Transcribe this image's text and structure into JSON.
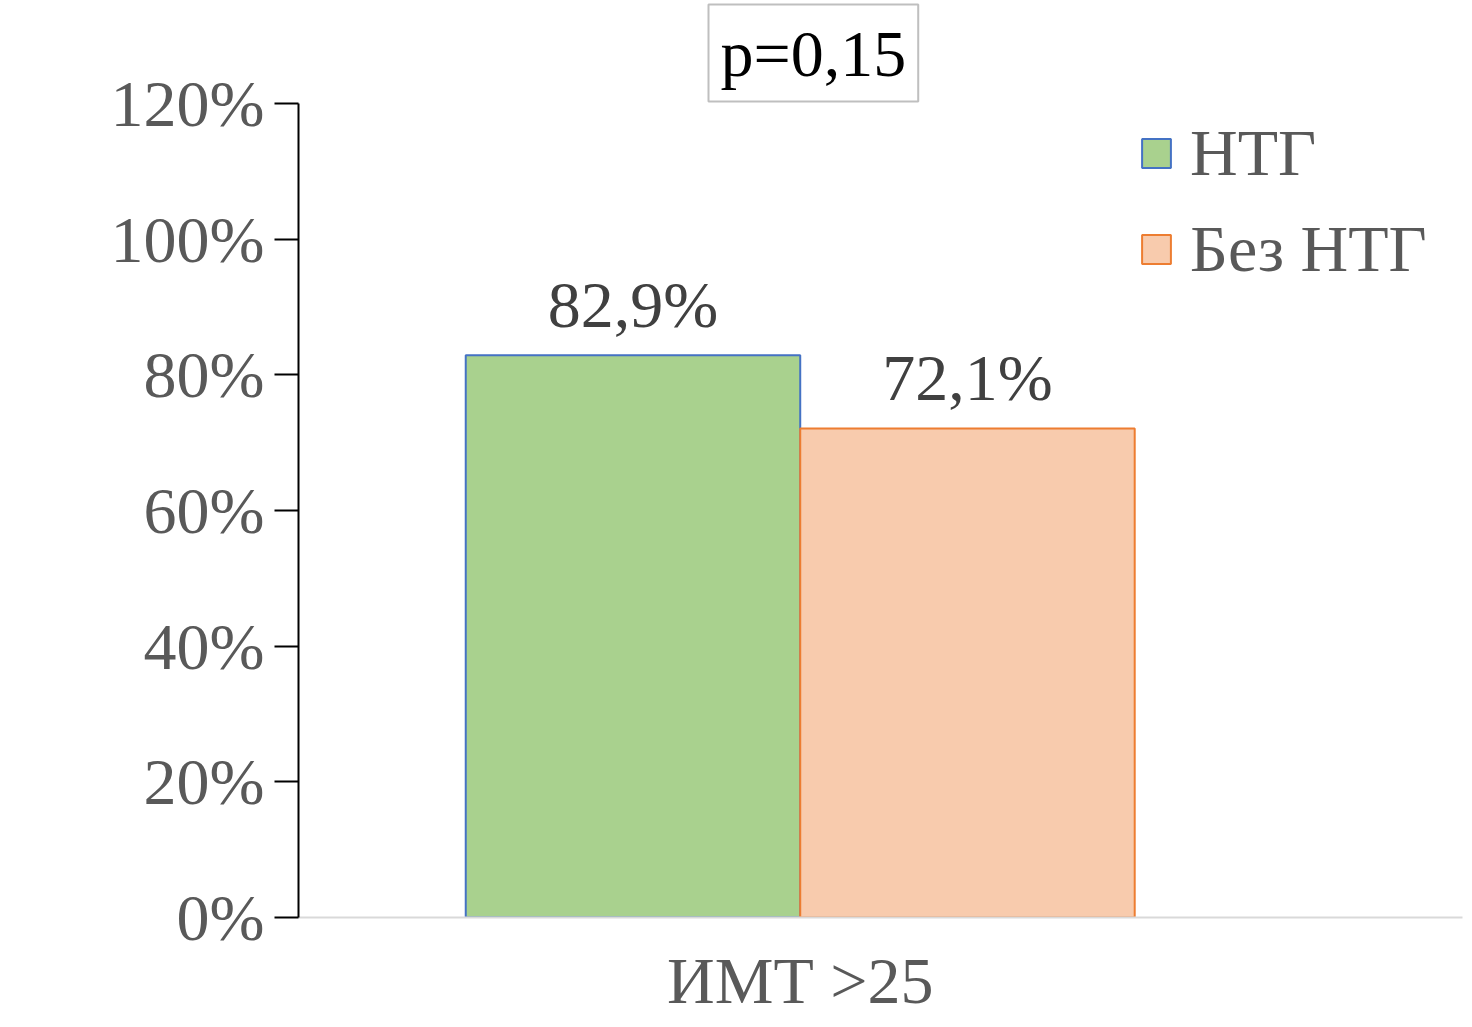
{
  "chart_data": {
    "type": "bar",
    "categories": [
      "ИМТ >25"
    ],
    "series": [
      {
        "name": "НТГ",
        "color": "#a9d18e",
        "values": [
          82.9
        ],
        "value_labels": [
          "82,9%"
        ]
      },
      {
        "name": "Без НТГ",
        "color": "#f8cbad",
        "values": [
          72.1
        ],
        "value_labels": [
          "72,1%"
        ]
      }
    ],
    "ylim": [
      0,
      120
    ],
    "yticks": [
      {
        "value": 0,
        "label": "0%"
      },
      {
        "value": 20,
        "label": "20%"
      },
      {
        "value": 40,
        "label": "40%"
      },
      {
        "value": 60,
        "label": "60%"
      },
      {
        "value": 80,
        "label": "80%"
      },
      {
        "value": 100,
        "label": "100%"
      },
      {
        "value": 120,
        "label": "120%"
      }
    ],
    "annotations": [
      "p=0,15"
    ],
    "grid": false,
    "legend": "top right"
  }
}
